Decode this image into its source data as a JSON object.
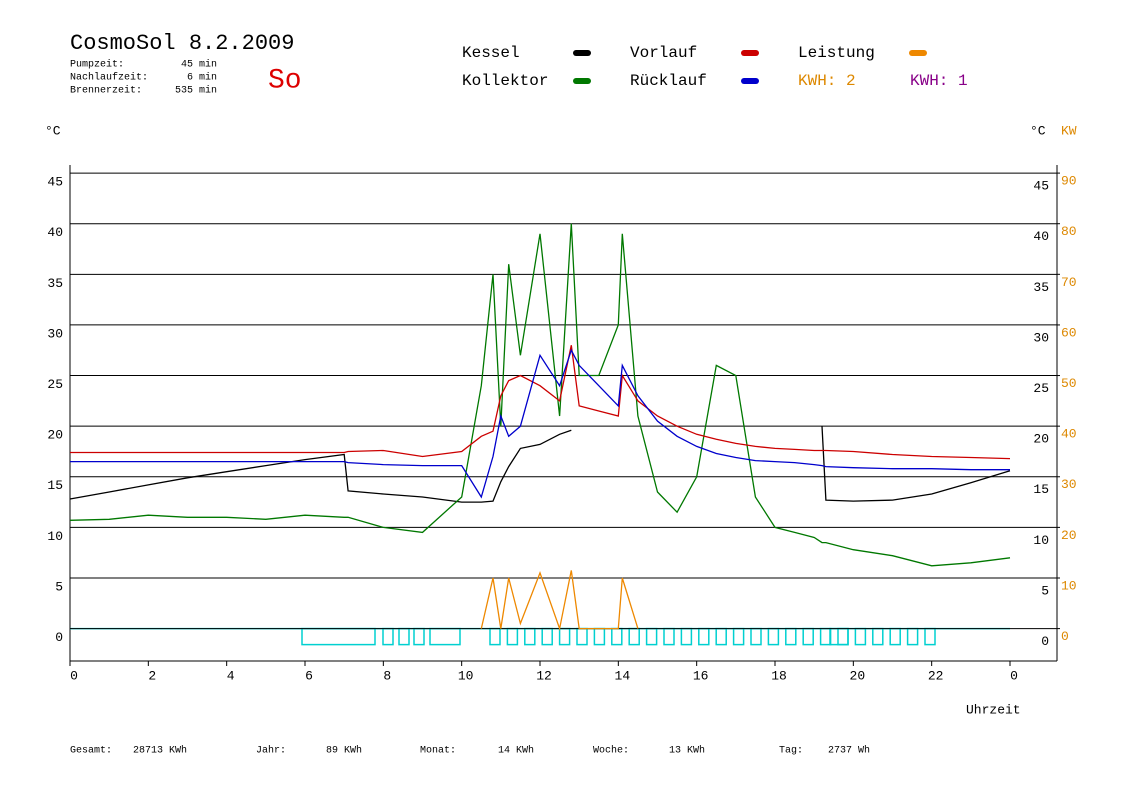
{
  "chart_data": {
    "type": "line",
    "title": "CosmoSol 8.2.2009",
    "day": "So",
    "info": [
      {
        "label": "Pumpzeit:",
        "value": "45 min"
      },
      {
        "label": "Nachlaufzeit:",
        "value": "6 min"
      },
      {
        "label": "Brennerzeit:",
        "value": "535 min"
      }
    ],
    "ylabel": "°C",
    "y2label": "°C",
    "y2unit": "KW",
    "xlabel": "Uhrzeit",
    "xlim": [
      0,
      25.2
    ],
    "xticks": [
      0,
      2,
      4,
      6,
      8,
      10,
      12,
      14,
      16,
      18,
      20,
      22,
      {
        "value": 24,
        "label": "0"
      }
    ],
    "ylim": [
      -3.2,
      45.8
    ],
    "yticks": [
      0,
      5,
      10,
      15,
      20,
      25,
      30,
      35,
      40,
      45
    ],
    "y2lim": [
      -6.4,
      91.6
    ],
    "y2ticks": [
      0,
      10,
      20,
      30,
      40,
      50,
      60,
      70,
      80,
      90
    ],
    "grid": true,
    "x": [
      0,
      1,
      2,
      3,
      4,
      5,
      6,
      7,
      7.1,
      8,
      9,
      10,
      10.5,
      10.8,
      11,
      11.2,
      11.5,
      12,
      12.5,
      12.8,
      13,
      13.5,
      14,
      14.1,
      14.5,
      15,
      15.5,
      16,
      16.5,
      17,
      17.5,
      18,
      18.5,
      19,
      19.2,
      19.3,
      20,
      21,
      22,
      23,
      24
    ],
    "series": [
      {
        "name": "Kessel",
        "color": "#000000",
        "values": [
          12.8,
          13.5,
          14.2,
          14.9,
          15.5,
          16.1,
          16.7,
          17.2,
          13.6,
          13.3,
          13.0,
          12.5,
          12.5,
          12.6,
          14.5,
          16,
          17.8,
          18.2,
          19.2,
          19.6,
          null,
          null,
          null,
          null,
          null,
          null,
          null,
          null,
          null,
          null,
          null,
          null,
          null,
          null,
          20.0,
          12.7,
          12.6,
          12.7,
          13.3,
          14.4,
          15.6
        ]
      },
      {
        "name": "Kollektor",
        "color": "#007800",
        "values": [
          10.7,
          10.8,
          11.2,
          11,
          11,
          10.8,
          11.2,
          11,
          11,
          10,
          9.5,
          13,
          24,
          35,
          20,
          36,
          27,
          39,
          21,
          40,
          25,
          25,
          30,
          39,
          21,
          13.5,
          11.5,
          15,
          26,
          25,
          13,
          10,
          9.5,
          9,
          8.5,
          8.5,
          7.8,
          7.2,
          6.2,
          6.5,
          7
        ]
      },
      {
        "name": "Vorlauf",
        "color": "#cc0000",
        "values": [
          17.4,
          17.4,
          17.4,
          17.4,
          17.4,
          17.4,
          17.4,
          17.4,
          17.5,
          17.6,
          17.0,
          17.5,
          19,
          19.5,
          23,
          24.5,
          25,
          24,
          22.5,
          28,
          22,
          21.5,
          21,
          25,
          22.5,
          21,
          20,
          19.2,
          18.7,
          18.3,
          18,
          17.8,
          17.7,
          17.6,
          17.6,
          17.6,
          17.5,
          17.2,
          17,
          16.9,
          16.8
        ]
      },
      {
        "name": "Rücklauf",
        "color": "#0000cc",
        "values": [
          16.5,
          16.5,
          16.5,
          16.5,
          16.5,
          16.5,
          16.5,
          16.5,
          16.4,
          16.2,
          16.1,
          16.1,
          13,
          17,
          21,
          19,
          20,
          27,
          24,
          27.5,
          26,
          24,
          22,
          26,
          23,
          20.5,
          19,
          18,
          17.3,
          16.9,
          16.6,
          16.5,
          16.4,
          16.2,
          16.1,
          16.0,
          15.9,
          15.8,
          15.8,
          15.7,
          15.7
        ]
      },
      {
        "name": "Leistung",
        "color": "#ee8800",
        "axis": "y2",
        "values": [
          null,
          null,
          null,
          null,
          null,
          null,
          null,
          null,
          null,
          null,
          null,
          null,
          0,
          10,
          0,
          10,
          1,
          11,
          0,
          11.5,
          0,
          0,
          0,
          10,
          0,
          null,
          null,
          null,
          null,
          null,
          null,
          null,
          null,
          null,
          null,
          null,
          null,
          null,
          null,
          null,
          null
        ]
      }
    ],
    "kwh_labels": [
      {
        "text": "KWH: 2",
        "color": "#dd8800"
      },
      {
        "text": "KWH: 1",
        "color": "#880088"
      }
    ],
    "totals": [
      {
        "label": "Gesamt:",
        "value": "28713 KWh"
      },
      {
        "label": "Jahr:",
        "value": "89 KWh"
      },
      {
        "label": "Monat:",
        "value": "14 KWh"
      },
      {
        "label": "Woche:",
        "value": "13 KWh"
      },
      {
        "label": "Tag:",
        "value": "2737 Wh"
      }
    ]
  }
}
